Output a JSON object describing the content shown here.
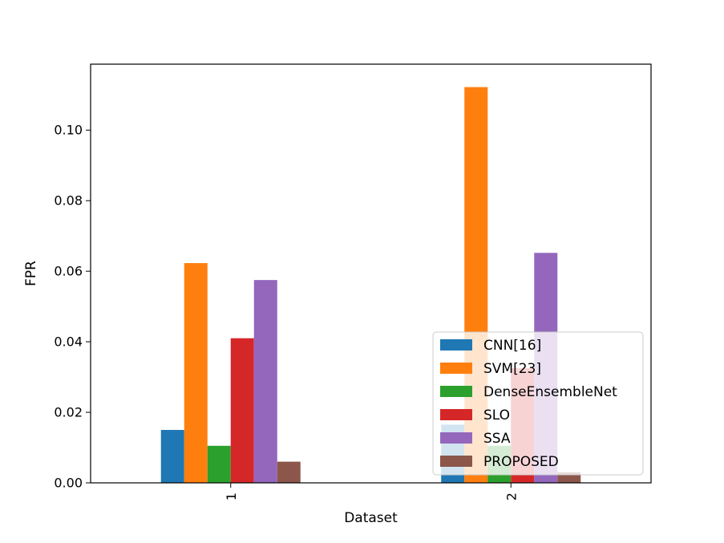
{
  "chart_data": {
    "type": "bar",
    "title": "",
    "xlabel": "Dataset",
    "ylabel": "FPR",
    "categories": [
      "1",
      "2"
    ],
    "ylim": [
      0,
      0.1187
    ],
    "yticks": [
      "0.00",
      "0.02",
      "0.04",
      "0.06",
      "0.08",
      "0.10"
    ],
    "grid": false,
    "legend_position": "lower-right",
    "series": [
      {
        "name": "CNN[16]",
        "color": "#1f77b4",
        "values": [
          0.015,
          0.0165
        ]
      },
      {
        "name": "SVM[23]",
        "color": "#ff7f0e",
        "values": [
          0.0623,
          0.1122
        ]
      },
      {
        "name": "DenseEnsembleNet",
        "color": "#2ca02c",
        "values": [
          0.0105,
          0.0105
        ]
      },
      {
        "name": "SLO",
        "color": "#d62728",
        "values": [
          0.041,
          0.0325
        ]
      },
      {
        "name": "SSA",
        "color": "#9467bd",
        "values": [
          0.0575,
          0.0652
        ]
      },
      {
        "name": "PROPOSED",
        "color": "#8c564b",
        "values": [
          0.006,
          0.003
        ]
      }
    ]
  }
}
